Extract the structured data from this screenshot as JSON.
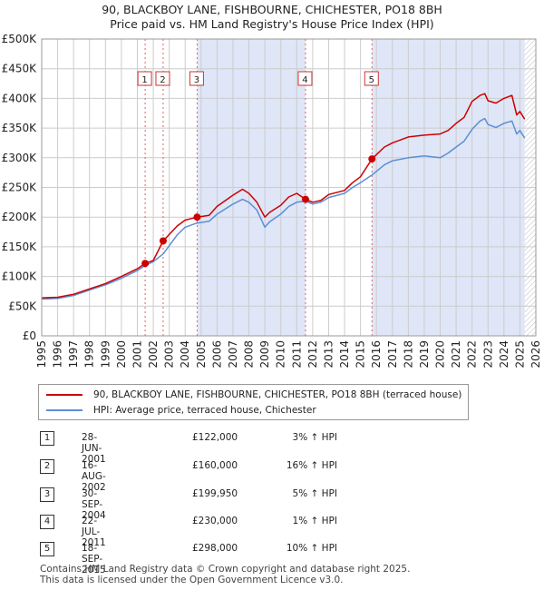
{
  "title_line1": "90, BLACKBOY LANE, FISHBOURNE, CHICHESTER, PO18 8BH",
  "title_line2": "Price paid vs. HM Land Registry's House Price Index (HPI)",
  "colors": {
    "price_line": "#cc0000",
    "hpi_line": "#5b8fd4",
    "shade": "#dfe6f7",
    "grid": "#cccccc"
  },
  "legend": {
    "price_label": "90, BLACKBOY LANE, FISHBOURNE, CHICHESTER, PO18 8BH (terraced house)",
    "hpi_label": "HPI: Average price, terraced house, Chichester"
  },
  "transactions": [
    {
      "num": "1",
      "date": "28-JUN-2001",
      "price": "£122,000",
      "hpi": "3% ↑ HPI"
    },
    {
      "num": "2",
      "date": "16-AUG-2002",
      "price": "£160,000",
      "hpi": "16% ↑ HPI"
    },
    {
      "num": "3",
      "date": "30-SEP-2004",
      "price": "£199,950",
      "hpi": "5% ↑ HPI"
    },
    {
      "num": "4",
      "date": "22-JUL-2011",
      "price": "£230,000",
      "hpi": "1% ↑ HPI"
    },
    {
      "num": "5",
      "date": "18-SEP-2015",
      "price": "£298,000",
      "hpi": "10% ↑ HPI"
    }
  ],
  "footer_line1": "Contains HM Land Registry data © Crown copyright and database right 2025.",
  "footer_line2": "This data is licensed under the Open Government Licence v3.0.",
  "chart_data": {
    "type": "line",
    "title": "90, BLACKBOY LANE, FISHBOURNE, CHICHESTER, PO18 8BH",
    "subtitle": "Price paid vs. HM Land Registry's House Price Index (HPI)",
    "xlabel": "",
    "ylabel": "",
    "xlim": [
      1995,
      2026
    ],
    "ylim": [
      0,
      500000
    ],
    "x_ticks": [
      "1995",
      "1996",
      "1997",
      "1998",
      "1999",
      "2000",
      "2001",
      "2002",
      "2003",
      "2004",
      "2005",
      "2006",
      "2007",
      "2008",
      "2009",
      "2010",
      "2011",
      "2012",
      "2013",
      "2014",
      "2015",
      "2016",
      "2017",
      "2018",
      "2019",
      "2020",
      "2021",
      "2022",
      "2023",
      "2024",
      "2025",
      "2026"
    ],
    "y_ticks": [
      {
        "value": 0,
        "label": "£0"
      },
      {
        "value": 50000,
        "label": "£50K"
      },
      {
        "value": 100000,
        "label": "£100K"
      },
      {
        "value": 150000,
        "label": "£150K"
      },
      {
        "value": 200000,
        "label": "£200K"
      },
      {
        "value": 250000,
        "label": "£250K"
      },
      {
        "value": 300000,
        "label": "£300K"
      },
      {
        "value": 350000,
        "label": "£350K"
      },
      {
        "value": 400000,
        "label": "£400K"
      },
      {
        "value": 450000,
        "label": "£450K"
      },
      {
        "value": 500000,
        "label": "£500K"
      }
    ],
    "grid": true,
    "shaded_ranges": [
      [
        2004.75,
        2011.55
      ],
      [
        2015.72,
        2025.3
      ]
    ],
    "forecast_hatch_from": 2025.3,
    "series": [
      {
        "name": "90, BLACKBOY LANE, FISHBOURNE, CHICHESTER, PO18 8BH (terraced house)",
        "x": [
          1995,
          1996,
          1997,
          1998,
          1999,
          2000,
          2001,
          2001.49,
          2002.0,
          2002.62,
          2003.5,
          2004.0,
          2004.75,
          2005.5,
          2006.0,
          2007.0,
          2007.6,
          2008.0,
          2008.5,
          2009.0,
          2009.3,
          2010.0,
          2010.5,
          2011.0,
          2011.55,
          2012.0,
          2012.5,
          2013.0,
          2014.0,
          2014.5,
          2015.0,
          2015.72,
          2016.5,
          2017.0,
          2018.0,
          2019.0,
          2020.0,
          2020.5,
          2021.0,
          2021.5,
          2022.0,
          2022.5,
          2022.8,
          2023.0,
          2023.5,
          2024.0,
          2024.5,
          2024.8,
          2025.0,
          2025.3
        ],
        "y": [
          64000,
          65000,
          70000,
          79000,
          88000,
          100000,
          113000,
          122000,
          127000,
          160000,
          185000,
          195000,
          199950,
          203000,
          218000,
          237000,
          247000,
          240000,
          225000,
          200000,
          208000,
          220000,
          234000,
          240000,
          230000,
          225000,
          228000,
          238000,
          245000,
          258000,
          268000,
          298000,
          318000,
          325000,
          335000,
          338000,
          340000,
          346000,
          358000,
          368000,
          395000,
          405000,
          408000,
          396000,
          392000,
          400000,
          405000,
          372000,
          378000,
          365000
        ]
      },
      {
        "name": "HPI: Average price, terraced house, Chichester",
        "x": [
          1995,
          1996,
          1997,
          1998,
          1999,
          2000,
          2001,
          2001.49,
          2002.0,
          2002.62,
          2003.5,
          2004.0,
          2004.75,
          2005.5,
          2006.0,
          2007.0,
          2007.6,
          2008.0,
          2008.5,
          2009.0,
          2009.3,
          2010.0,
          2010.5,
          2011.0,
          2011.55,
          2012.0,
          2012.5,
          2013.0,
          2014.0,
          2014.5,
          2015.0,
          2015.72,
          2016.5,
          2017.0,
          2018.0,
          2019.0,
          2020.0,
          2020.5,
          2021.0,
          2021.5,
          2022.0,
          2022.5,
          2022.8,
          2023.0,
          2023.5,
          2024.0,
          2024.5,
          2024.8,
          2025.0,
          2025.3
        ],
        "y": [
          62000,
          63000,
          68000,
          77000,
          86000,
          97000,
          110000,
          118500,
          125000,
          138000,
          170000,
          183000,
          190000,
          193000,
          205000,
          222000,
          230000,
          225000,
          212000,
          183000,
          192000,
          205000,
          218000,
          225000,
          227000,
          222000,
          225000,
          233000,
          240000,
          250000,
          258000,
          271000,
          288000,
          295000,
          300000,
          303000,
          300000,
          308000,
          318000,
          328000,
          348000,
          362000,
          366000,
          356000,
          351000,
          358000,
          362000,
          340000,
          346000,
          333000
        ]
      }
    ],
    "markers": [
      {
        "label": "1",
        "x": 2001.49,
        "y": 122000
      },
      {
        "label": "2",
        "x": 2002.62,
        "y": 160000
      },
      {
        "label": "3",
        "x": 2004.75,
        "y": 199950
      },
      {
        "label": "4",
        "x": 2011.55,
        "y": 230000
      },
      {
        "label": "5",
        "x": 2015.72,
        "y": 298000
      }
    ]
  }
}
